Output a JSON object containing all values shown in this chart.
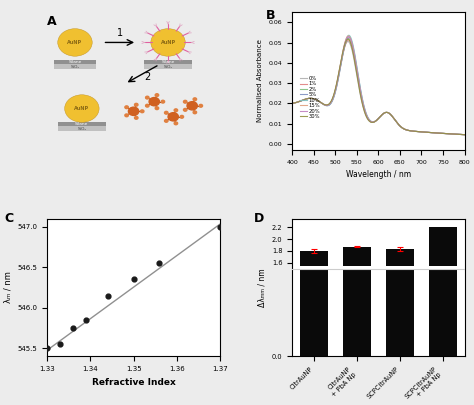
{
  "panel_B": {
    "legend_labels": [
      "0%",
      "1%",
      "2%",
      "5%",
      "10%",
      "15%",
      "20%",
      "30%"
    ],
    "colors": [
      "#b0b0b0",
      "#e08080",
      "#80c080",
      "#8090c0",
      "#80c0c0",
      "#e0a080",
      "#c080c0",
      "#909040"
    ],
    "ylabel": "Normalised Absorbance",
    "xlabel": "Wavelength / nm",
    "xlim": [
      400,
      800
    ],
    "ylim": [
      -0.003,
      0.065
    ],
    "yticks": [
      0,
      0.01,
      0.02,
      0.03,
      0.04,
      0.05,
      0.06
    ]
  },
  "panel_C": {
    "x": [
      1.33,
      1.333,
      1.336,
      1.339,
      1.344,
      1.35,
      1.356,
      1.37
    ],
    "y": [
      545.5,
      545.55,
      545.75,
      545.85,
      546.15,
      546.35,
      546.55,
      547.0
    ],
    "fit_x": [
      1.329,
      1.371
    ],
    "fit_y": [
      545.44,
      547.07
    ],
    "xlabel": "Refractive Index",
    "ylabel": "λₘ / nm",
    "xlim": [
      1.33,
      1.37
    ],
    "ylim": [
      545.4,
      547.1
    ],
    "yticks": [
      545.5,
      546.0,
      546.5,
      547.0
    ],
    "xticks": [
      1.33,
      1.34,
      1.35,
      1.36,
      1.37
    ]
  },
  "panel_D": {
    "categories": [
      "CitrAuNP",
      "CitrAuNP\n+ PbA Np",
      "SCPCitrAuNP",
      "SCPCitrAuNP\n+ PbA Np"
    ],
    "values": [
      1.8,
      1.875,
      1.835,
      2.2
    ],
    "errors": [
      0.03,
      0.015,
      0.04,
      0.0
    ],
    "bar_color": "#0a0a0a",
    "hline_y": 1.5,
    "ylabel": "Δλₘₘ / nm",
    "ylim": [
      0,
      2.35
    ],
    "yticks": [
      0,
      1.6,
      1.8,
      2.0,
      2.2
    ],
    "error_color": "#ff0000"
  },
  "bg_color": "#ececec",
  "label_A": "A",
  "label_B": "B",
  "label_C": "C",
  "label_D": "D"
}
